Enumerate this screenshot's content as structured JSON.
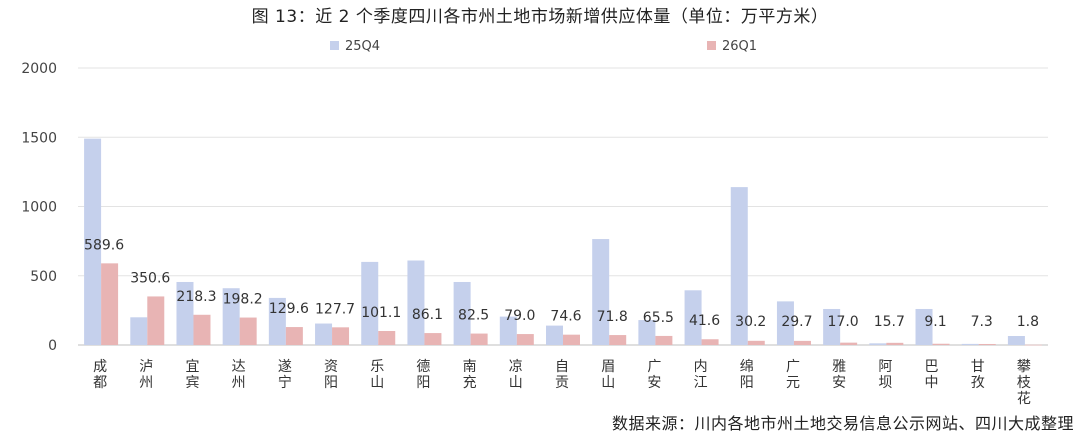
{
  "title": "图 13：近 2 个季度四川各市州土地市场新增供应体量（单位：万平方米）",
  "source": "数据来源：川内各地市州土地交易信息公示网站、四川大成整理",
  "chart_data": {
    "type": "bar",
    "categories": [
      "成都",
      "泸州",
      "宜宾",
      "达州",
      "遂宁",
      "资阳",
      "乐山",
      "德阳",
      "南充",
      "凉山",
      "自贡",
      "眉山",
      "广安",
      "内江",
      "绵阳",
      "广元",
      "雅安",
      "阿坝",
      "巴中",
      "甘孜",
      "攀枝花"
    ],
    "series": [
      {
        "name": "25Q4",
        "color": "#c5d0ec",
        "values": [
          1490,
          200,
          455,
          410,
          340,
          155,
          600,
          610,
          455,
          205,
          140,
          765,
          180,
          395,
          1140,
          315,
          260,
          12,
          260,
          8,
          65
        ]
      },
      {
        "name": "26Q1",
        "color": "#e8b4b4",
        "values": [
          589.6,
          350.6,
          218.3,
          198.2,
          129.6,
          127.7,
          101.1,
          86.1,
          82.5,
          79.0,
          74.6,
          71.8,
          65.5,
          41.6,
          30.2,
          29.7,
          17.0,
          15.7,
          9.1,
          7.3,
          1.8
        ]
      }
    ],
    "data_labels": [
      "589.6",
      "350.6",
      "218.3",
      "198.2",
      "129.6",
      "127.7",
      "101.1",
      "86.1",
      "82.5",
      "79.0",
      "74.6",
      "71.8",
      "65.5",
      "41.6",
      "30.2",
      "29.7",
      "17.0",
      "15.7",
      "9.1",
      "7.3",
      "1.8"
    ],
    "yticks": [
      "0",
      "500",
      "1000",
      "1500",
      "2000"
    ],
    "ylim": [
      0,
      2000
    ],
    "legend_position": "top",
    "grid": true
  }
}
